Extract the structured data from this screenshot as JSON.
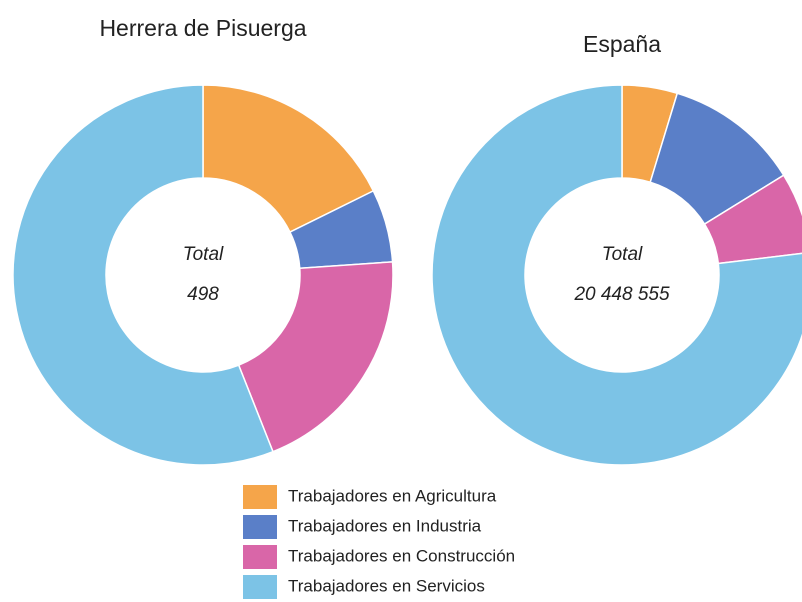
{
  "chart_data": [
    {
      "type": "donut",
      "title": "Herrera de Pisuerga",
      "center_label": "Total",
      "total": 498,
      "values": [
        17.7,
        6.2,
        20.1,
        56.0
      ]
    },
    {
      "type": "donut",
      "title": "España",
      "center_label": "Total",
      "total": {
        "value": 20448555,
        "label": "20 448 555"
      },
      "values": [
        4.7,
        11.5,
        6.9,
        76.9
      ]
    }
  ],
  "legend": {
    "labels": [
      "Trabajadores en Agricultura",
      "Trabajadores en Industria",
      "Trabajadores en Construcción",
      "Trabajadores en Servicios"
    ],
    "colors": [
      "#f5a54a",
      "#5a7fc8",
      "#d966a8",
      "#7cc3e6"
    ]
  }
}
